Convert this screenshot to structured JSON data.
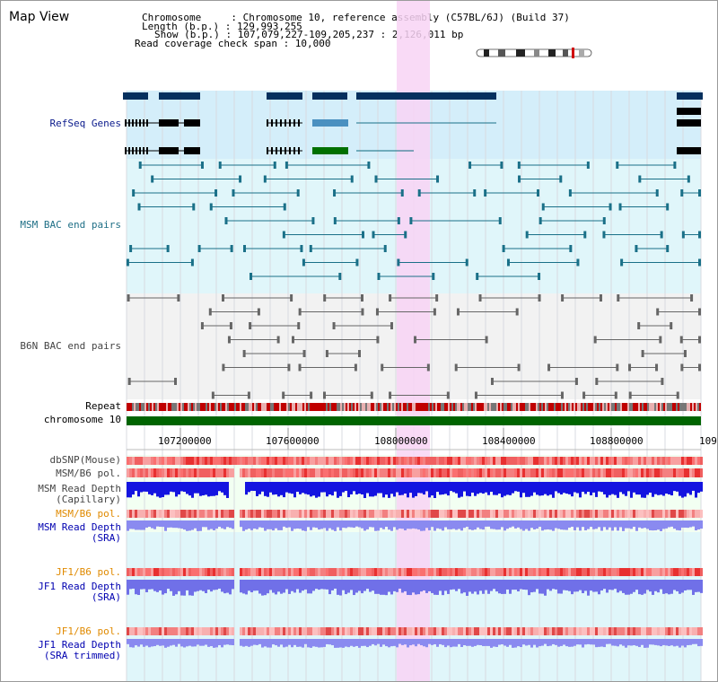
{
  "window": {
    "title": "Map View"
  },
  "info": {
    "chromosome_line": "Chromosome     : Chromosome 10, reference assembly (C57BL/6J) (Build 37)",
    "length_line": "Length (b.p.) : 129,993,255",
    "show_line": "Show (b.p.) : 107,079,227-109,205,237 : 2,126,011 bp",
    "coverage_line": "Read coverage check span : 10,000"
  },
  "tracks": {
    "refseq": "RefSeq Genes",
    "msm_bac": "MSM BAC end pairs",
    "b6n_bac": "B6N BAC end pairs",
    "repeat": "Repeat",
    "chromosome": "chromosome 10",
    "dbsnp": "dbSNP(Mouse)",
    "msm_pol_1": "MSM/B6 pol.",
    "msm_depth_cap_1": "MSM Read Depth",
    "msm_depth_cap_2": "(Capillary)",
    "msm_pol_2": "MSM/B6 pol.",
    "msm_depth_sra_1": "MSM Read Depth",
    "msm_depth_sra_2": "(SRA)",
    "jf1_pol_1": "JF1/B6 pol.",
    "jf1_depth_sra_1": "JF1 Read Depth",
    "jf1_depth_sra_2": "(SRA)",
    "jf1_pol_2": "JF1/B6 pol.",
    "jf1_depth_trim_1": "JF1 Read Depth",
    "jf1_depth_trim_2": "(SRA trimmed)"
  },
  "axis": {
    "ticks": [
      "107200000",
      "107600000",
      "108000000",
      "108400000",
      "108800000",
      "109"
    ]
  },
  "colors": {
    "highlight": "#f8d4f4",
    "refseq_bg": "#d4eefa",
    "teal_bg": "#e0f6fa",
    "gene": "#06305e",
    "teal": "#1a7088",
    "gray": "#666666",
    "chrom": "#006400"
  }
}
